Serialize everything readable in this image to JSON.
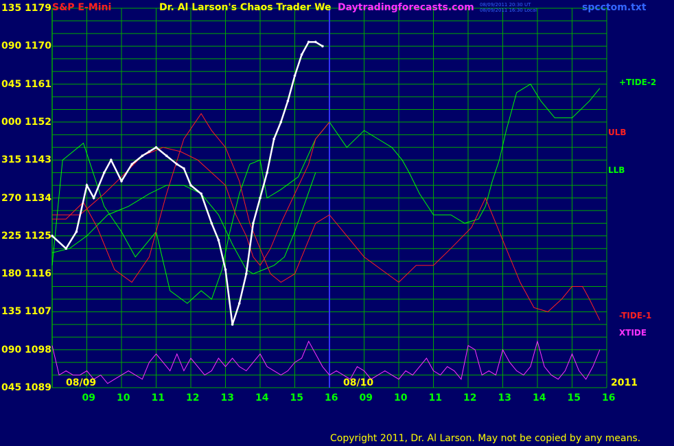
{
  "header": {
    "instrument": "S&P E-Mini",
    "title": "Dr. Al Larson's Chaos Trader We",
    "site": "Daytradingforecasts.com",
    "timestamp_1": "08/09/2011 20:30 UT",
    "timestamp_2": "08/09/2011 16:30 Local",
    "filename": "spcctom.txt"
  },
  "footer": {
    "copyright": "Copyright 2011, Dr. Al Larson. May not be copied by any means."
  },
  "colors": {
    "background": "#000066",
    "grid": "#00aa00",
    "price_line": "#ffffff",
    "red_lines": "#ff2020",
    "green_lines": "#00ff00",
    "xtide": "#ff33ff",
    "axis_text_y": "#ffff00",
    "axis_text_x": "#00ff00",
    "divider": "#3333ff"
  },
  "chart_data": {
    "type": "line",
    "y_ticks": [
      {
        "cycle": "135",
        "price": "1179"
      },
      {
        "cycle": "090",
        "price": "1170"
      },
      {
        "cycle": "045",
        "price": "1161"
      },
      {
        "cycle": "000",
        "price": "1152"
      },
      {
        "cycle": "315",
        "price": "1143"
      },
      {
        "cycle": "270",
        "price": "1134"
      },
      {
        "cycle": "225",
        "price": "1125"
      },
      {
        "cycle": "180",
        "price": "1116"
      },
      {
        "cycle": "135",
        "price": "1107"
      },
      {
        "cycle": "090",
        "price": "1098"
      },
      {
        "cycle": "045",
        "price": "1089"
      }
    ],
    "ylim": [
      1089,
      1179
    ],
    "grid": true,
    "x_ticks": [
      "09",
      "10",
      "11",
      "12",
      "13",
      "14",
      "15",
      "16",
      "09",
      "10",
      "11",
      "12",
      "13",
      "14",
      "15",
      "16"
    ],
    "date_labels": [
      "08/09",
      "08/10"
    ],
    "year_label": "2011",
    "legend": [
      {
        "label": "+TIDE-2",
        "color": "#00ff00",
        "placement": "right"
      },
      {
        "label": "ULB",
        "color": "#ff2020",
        "placement": "right"
      },
      {
        "label": "LLB",
        "color": "#00ff00",
        "placement": "right"
      },
      {
        "label": "-TIDE-1",
        "color": "#ff2020",
        "placement": "right"
      },
      {
        "label": "XTIDE",
        "color": "#ff33ff",
        "placement": "right"
      }
    ],
    "price": {
      "t": [
        0.0,
        0.4,
        0.7,
        1.0,
        1.2,
        1.5,
        1.7,
        2.0,
        2.3,
        2.6,
        2.8,
        3.0,
        3.3,
        3.6,
        3.8,
        4.0,
        4.3,
        4.6,
        4.8,
        5.0,
        5.2,
        5.4,
        5.6,
        5.8,
        6.0,
        6.2,
        6.4,
        6.6,
        6.8,
        7.0,
        7.2,
        7.4,
        7.6,
        7.8
      ],
      "price": [
        1125,
        1122,
        1126,
        1137,
        1134,
        1140,
        1143,
        1138,
        1142,
        1144,
        1145,
        1146,
        1144,
        1142,
        1141,
        1137,
        1135,
        1128,
        1124,
        1117,
        1104,
        1109,
        1116,
        1128,
        1134,
        1140,
        1148,
        1152,
        1157,
        1163,
        1168,
        1171,
        1171,
        1170
      ]
    },
    "series": [
      {
        "name": "+TIDE-2",
        "t": [
          0.0,
          0.3,
          0.9,
          1.5,
          2.0,
          2.4,
          2.7,
          3.0,
          3.4,
          3.9,
          4.3,
          4.6,
          4.9,
          5.1,
          5.4,
          5.7,
          6.0,
          6.2,
          6.6,
          7.1,
          7.6,
          8.0,
          8.5,
          9.0,
          9.4,
          9.8,
          10.1,
          10.3,
          10.6,
          11.0,
          11.5,
          11.9,
          12.3,
          12.5,
          12.7,
          12.9,
          13.1,
          13.4,
          13.8,
          14.1,
          14.5,
          15.0,
          15.5,
          15.8
        ],
        "values": [
          1118,
          1143,
          1147,
          1132,
          1126,
          1120,
          1123,
          1126,
          1112,
          1109,
          1112,
          1110,
          1117,
          1125,
          1135,
          1142,
          1143,
          1134,
          1136,
          1139,
          1148,
          1152,
          1146,
          1150,
          1148,
          1146,
          1143,
          1140,
          1135,
          1130,
          1130,
          1128,
          1129,
          1132,
          1138,
          1143,
          1150,
          1159,
          1161,
          1157,
          1153,
          1153,
          1157,
          1160
        ]
      },
      {
        "name": "ULB",
        "t": [
          0.0,
          0.8,
          1.5,
          2.0,
          2.6,
          3.2,
          3.7,
          4.2,
          4.6,
          5.0,
          5.3,
          5.6,
          5.8,
          6.0,
          6.3,
          6.6,
          7.0,
          7.4,
          7.6,
          8.0
        ],
        "values": [
          1130,
          1130,
          1135,
          1139,
          1144,
          1146,
          1145,
          1143,
          1140,
          1137,
          1130,
          1125,
          1120,
          1118,
          1122,
          1128,
          1135,
          1142,
          1148,
          1152
        ]
      },
      {
        "name": "LLB",
        "t": [
          0.0,
          0.5,
          1.0,
          1.6,
          2.2,
          2.8,
          3.3,
          3.8,
          4.3,
          4.8,
          5.2,
          5.6,
          5.8,
          6.1,
          6.4,
          6.7,
          7.0,
          7.3,
          7.6
        ],
        "values": [
          1121,
          1122,
          1125,
          1130,
          1132,
          1135,
          1137,
          1137,
          1135,
          1130,
          1123,
          1117,
          1116,
          1117,
          1118,
          1120,
          1126,
          1133,
          1140
        ]
      },
      {
        "name": "-TIDE-1",
        "t": [
          0.0,
          0.4,
          0.9,
          1.3,
          1.8,
          2.3,
          2.8,
          3.3,
          3.8,
          4.3,
          4.6,
          5.0,
          5.4,
          5.7,
          6.0,
          6.3,
          6.6,
          7.0,
          7.3,
          7.6,
          8.0,
          8.5,
          9.0,
          9.5,
          10.0,
          10.5,
          11.0,
          11.5,
          12.1,
          12.5,
          12.8,
          13.1,
          13.5,
          13.9,
          14.3,
          14.7,
          15.0,
          15.3,
          15.5,
          15.8
        ],
        "values": [
          1129,
          1129,
          1133,
          1127,
          1117,
          1114,
          1120,
          1135,
          1148,
          1154,
          1150,
          1146,
          1138,
          1128,
          1122,
          1116,
          1114,
          1116,
          1122,
          1128,
          1130,
          1125,
          1120,
          1117,
          1114,
          1118,
          1118,
          1122,
          1127,
          1134,
          1128,
          1122,
          1114,
          1108,
          1107,
          1110,
          1113,
          1113,
          1110,
          1105
        ]
      },
      {
        "name": "XTIDE",
        "t": [
          0.0,
          0.2,
          0.4,
          0.6,
          0.8,
          1.0,
          1.2,
          1.4,
          1.6,
          1.8,
          2.0,
          2.2,
          2.4,
          2.6,
          2.8,
          3.0,
          3.2,
          3.4,
          3.6,
          3.8,
          4.0,
          4.2,
          4.4,
          4.6,
          4.8,
          5.0,
          5.2,
          5.4,
          5.6,
          5.8,
          6.0,
          6.2,
          6.4,
          6.6,
          6.8,
          7.0,
          7.2,
          7.4,
          7.6,
          7.8,
          8.0,
          8.2,
          8.4,
          8.6,
          8.8,
          9.0,
          9.2,
          9.4,
          9.6,
          9.8,
          10.0,
          10.2,
          10.4,
          10.6,
          10.8,
          11.0,
          11.2,
          11.4,
          11.6,
          11.8,
          12.0,
          12.2,
          12.4,
          12.6,
          12.8,
          13.0,
          13.2,
          13.4,
          13.6,
          13.8,
          14.0,
          14.2,
          14.4,
          14.6,
          14.8,
          15.0,
          15.2,
          15.4,
          15.6,
          15.8
        ],
        "values": [
          1099,
          1092,
          1093,
          1092,
          1092,
          1093,
          1091,
          1092,
          1090,
          1091,
          1092,
          1093,
          1092,
          1091,
          1095,
          1097,
          1095,
          1093,
          1097,
          1093,
          1096,
          1094,
          1092,
          1093,
          1096,
          1094,
          1096,
          1094,
          1093,
          1095,
          1097,
          1094,
          1093,
          1092,
          1093,
          1095,
          1096,
          1100,
          1097,
          1094,
          1092,
          1093,
          1092,
          1091,
          1094,
          1093,
          1091,
          1092,
          1093,
          1092,
          1091,
          1093,
          1092,
          1094,
          1096,
          1093,
          1092,
          1094,
          1093,
          1091,
          1099,
          1098,
          1092,
          1093,
          1092,
          1098,
          1095,
          1093,
          1092,
          1094,
          1100,
          1094,
          1092,
          1091,
          1093,
          1097,
          1093,
          1091,
          1094,
          1098
        ]
      }
    ]
  }
}
